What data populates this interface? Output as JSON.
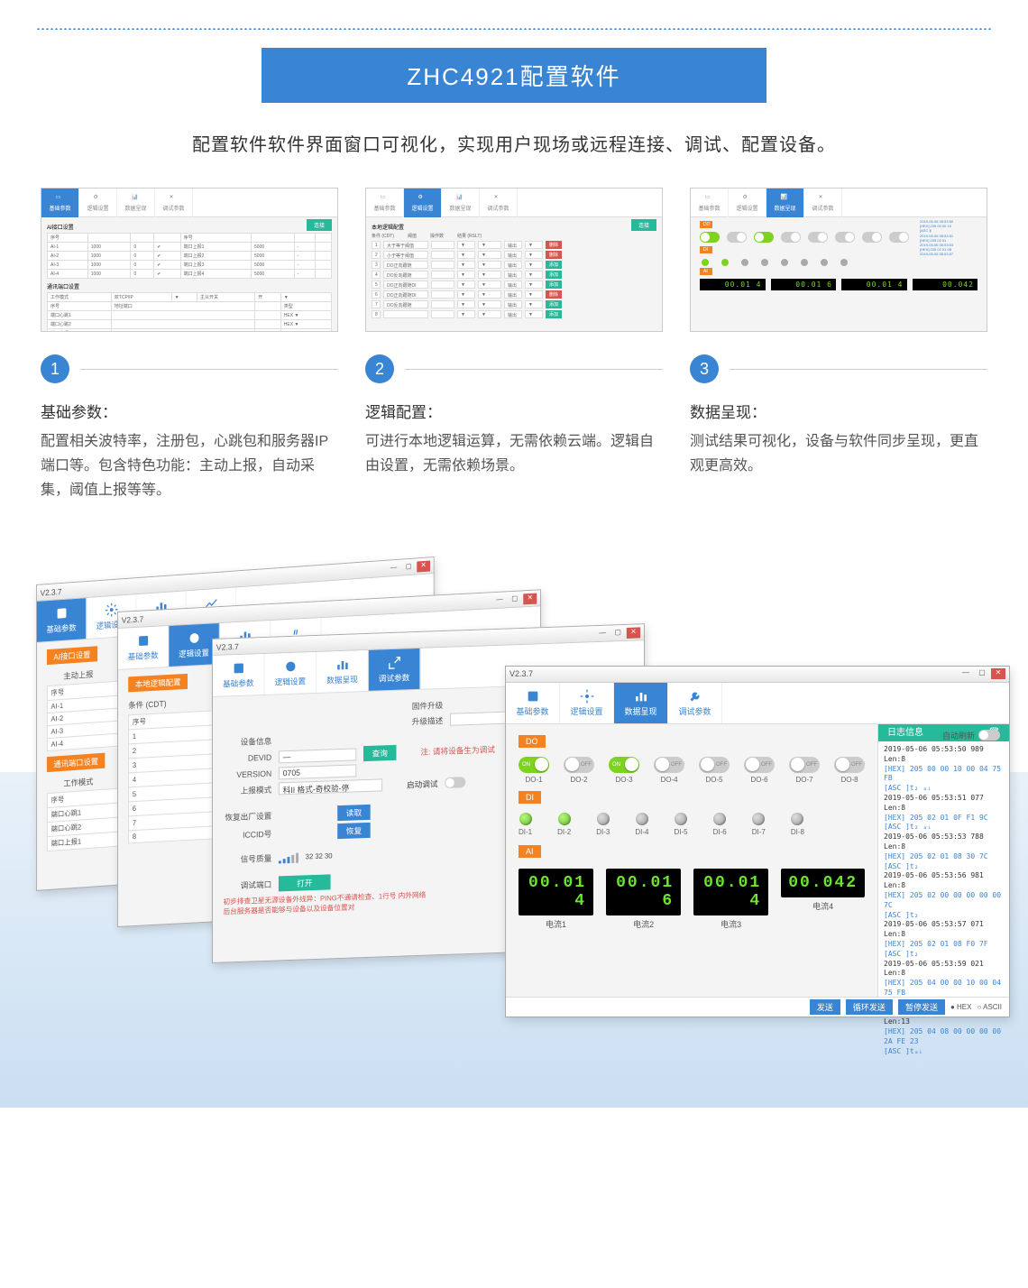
{
  "header": {
    "title": "ZHC4921配置软件",
    "subtitle": "配置软件软件界面窗口可视化，实现用户现场或远程连接、调试、配置设备。"
  },
  "colors": {
    "primary": "#3a84d4",
    "accent": "#f58220",
    "success": "#26b99a",
    "danger": "#d9534f",
    "led_on": "#7ed321"
  },
  "thumbs": {
    "green_btn": "连接",
    "tabs": [
      "基础参数",
      "逻辑设置",
      "数据呈现",
      "调试参数"
    ]
  },
  "items": [
    {
      "num": "1",
      "title": "基础参数：",
      "desc": "配置相关波特率，注册包，心跳包和服务器IP端口等。包含特色功能：主动上报，自动采集，阈值上报等等。"
    },
    {
      "num": "2",
      "title": "逻辑配置：",
      "desc": "可进行本地逻辑运算，无需依赖云端。逻辑自由设置，无需依赖场景。"
    },
    {
      "num": "3",
      "title": "数据呈现：",
      "desc": "测试结果可视化，设备与软件同步呈现，更直观更高效。"
    }
  ],
  "win_common": {
    "version": "V2.3.7",
    "tabs": [
      {
        "label": "基础参数",
        "icon": "doc"
      },
      {
        "label": "逻辑设置",
        "icon": "gear"
      },
      {
        "label": "数据呈现",
        "icon": "chart"
      },
      {
        "label": "调试参数",
        "icon": "wrench"
      }
    ],
    "log_title": "日志信息"
  },
  "w1": {
    "section1": "AI接口设置",
    "row_label": "主动上报",
    "col_labels": [
      "序号"
    ],
    "rows": [
      "AI-1",
      "AI-2",
      "AI-3",
      "AI-4"
    ],
    "section2": "通讯端口设置",
    "mode_label": "工作模式",
    "port_rows": [
      "端口心跳1",
      "端口心跳2",
      "端口上报1"
    ]
  },
  "w2": {
    "section": "本地逻辑配置",
    "cond_header": "条件 (CDT)",
    "col_seq": "序号",
    "conditions": [
      "大于等于阈值",
      "小于等于阈值",
      "DO正向跟随",
      "DO反向跟随",
      "DO正向跟随DI",
      "DO正向跟随DI",
      "DO反向跟随"
    ]
  },
  "w3": {
    "labels": {
      "fw": "固件升级",
      "fw2": "升级描述",
      "dev": "设备信息",
      "devid": "DEVID",
      "ver": "VERSION",
      "mode": "上报模式",
      "rst": "恢复出厂设置",
      "iccid": "ICCID号",
      "sig": "信号质量",
      "port": "调试端口"
    },
    "devid_val": "—",
    "ver_val": "0705",
    "mode_val": "科II  格式-奇校验-停",
    "read_btn": "读取",
    "restore_btn": "恢复",
    "query_btn": "查询",
    "warn1": "注: 请将设备生为调试",
    "port_btn": "打开",
    "note": "初步排查卫星无源设备外线异：PING不通请检查、1行号 内外网络\n后台服务器是否能够与设备以及设备位置对"
  },
  "w4": {
    "auto_refresh": "自动刷新",
    "do": {
      "label": "DO",
      "channels": [
        "DO-1",
        "DO-2",
        "DO-3",
        "DO-4",
        "DO-5",
        "DO-6",
        "DO-7",
        "DO-8"
      ],
      "states": [
        true,
        false,
        true,
        false,
        false,
        false,
        false,
        false
      ]
    },
    "di": {
      "label": "DI",
      "channels": [
        "DI-1",
        "DI-2",
        "DI-3",
        "DI-4",
        "DI-5",
        "DI-6",
        "DI-7",
        "DI-8"
      ],
      "states": [
        true,
        true,
        false,
        false,
        false,
        false,
        false,
        false
      ]
    },
    "ai": {
      "label": "AI",
      "channels": [
        "电流1",
        "电流2",
        "电流3",
        "电流4"
      ],
      "values": [
        "00.01 4",
        "00.01 6",
        "00.01 4",
        "00.042"
      ]
    },
    "log": [
      {
        "t": "2019-05-06 05:53:50 989 Len:8"
      },
      {
        "h": "[HEX] 205 00 00 10 00 04 75 FB"
      },
      {
        "a": "[ASC ]t₂ ₐᵢ"
      },
      {
        "t": "2019-05-06 05:53:51 077 Len:8"
      },
      {
        "h": "[HEX] 205 02 01 0F F1 9C"
      },
      {
        "a": "[ASC ]t₂ ₐᵢ"
      },
      {
        "t": "2019-05-06 05:53:53 788 Len:8"
      },
      {
        "h": "[HEX] 205 02 01 08 30 7C"
      },
      {
        "a": "[ASC ]t₂"
      },
      {
        "t": "2019-05-06 05:53:56 981 Len:8"
      },
      {
        "h": "[HEX] 205 02 00 00 00 00 00 7C"
      },
      {
        "a": "[ASC ]t₂"
      },
      {
        "t": "2019-05-06 05:53:57 071 Len:8"
      },
      {
        "h": "[HEX] 205 02 01 08 F0 7F"
      },
      {
        "a": "[ASC ]t₂"
      },
      {
        "t": "2019-05-06 05:53:59 021 Len:8"
      },
      {
        "h": "[HEX] 205 04 00 00 10 00 04 75 FB"
      },
      {
        "a": "[ASC ]t₂"
      },
      {
        "t": "2019-05-06 05:53:59 133 Len:13"
      },
      {
        "h": "[HEX] 205 04 08 00 00 00 00 2A FE 23"
      },
      {
        "a": "[ASC ]tₐᵢ"
      }
    ],
    "footer": {
      "send": "发送",
      "loop": "循环发送",
      "pause": "暂停发送",
      "hex": "HEX",
      "ascii": "ASCII"
    }
  },
  "thumb3": {
    "lcd": [
      "00.01 4",
      "00.01 6",
      "00.01 4",
      "00.042"
    ]
  }
}
